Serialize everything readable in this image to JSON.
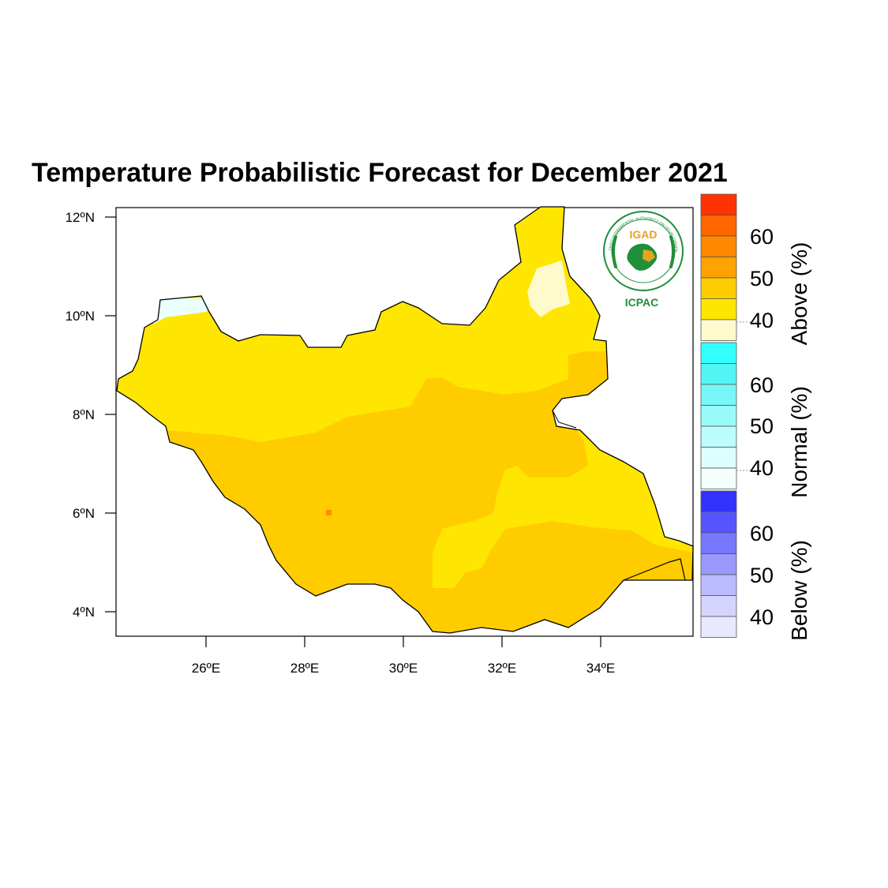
{
  "title": "Temperature Probabilistic Forecast for December 2021",
  "map": {
    "lat_ticks": [
      "12ºN",
      "10ºN",
      "8ºN",
      "6ºN",
      "4ºN"
    ],
    "lon_ticks": [
      "26ºE",
      "28ºE",
      "30ºE",
      "32ºE",
      "34ºE"
    ],
    "region_colors": {
      "above_40": "#ffe600",
      "above_45": "#ffcc00",
      "near_normal_band": "#fffacc",
      "normal_40": "#eaffff",
      "hotspot": "#ff8c00"
    }
  },
  "logo": {
    "top_text": "IGAD",
    "bottom_text": "ICPAC",
    "ring_text": "INTERGOVERNMENTAL AUTHORITY ON DEVELOPMENT"
  },
  "colorbar": {
    "groups": [
      {
        "label": "Above (%)",
        "tick_labels": [
          "60",
          "50",
          "40"
        ],
        "colors": [
          "#ff3300",
          "#ff6600",
          "#ff8800",
          "#ffa200",
          "#ffcc00",
          "#ffe600",
          "#fffacc"
        ]
      },
      {
        "label": "Normal (%)",
        "tick_labels": [
          "60",
          "50",
          "40"
        ],
        "colors": [
          "#33ffff",
          "#55f5f5",
          "#77f7f7",
          "#99fafa",
          "#bbfcfc",
          "#ddfefe",
          "#f3ffff"
        ]
      },
      {
        "label": "Below (%)",
        "tick_labels": [
          "60",
          "50",
          "40"
        ],
        "colors": [
          "#3333ff",
          "#5555ff",
          "#7777ff",
          "#9999ff",
          "#bbbbff",
          "#d4d4ff",
          "#e8e8ff"
        ]
      }
    ]
  }
}
